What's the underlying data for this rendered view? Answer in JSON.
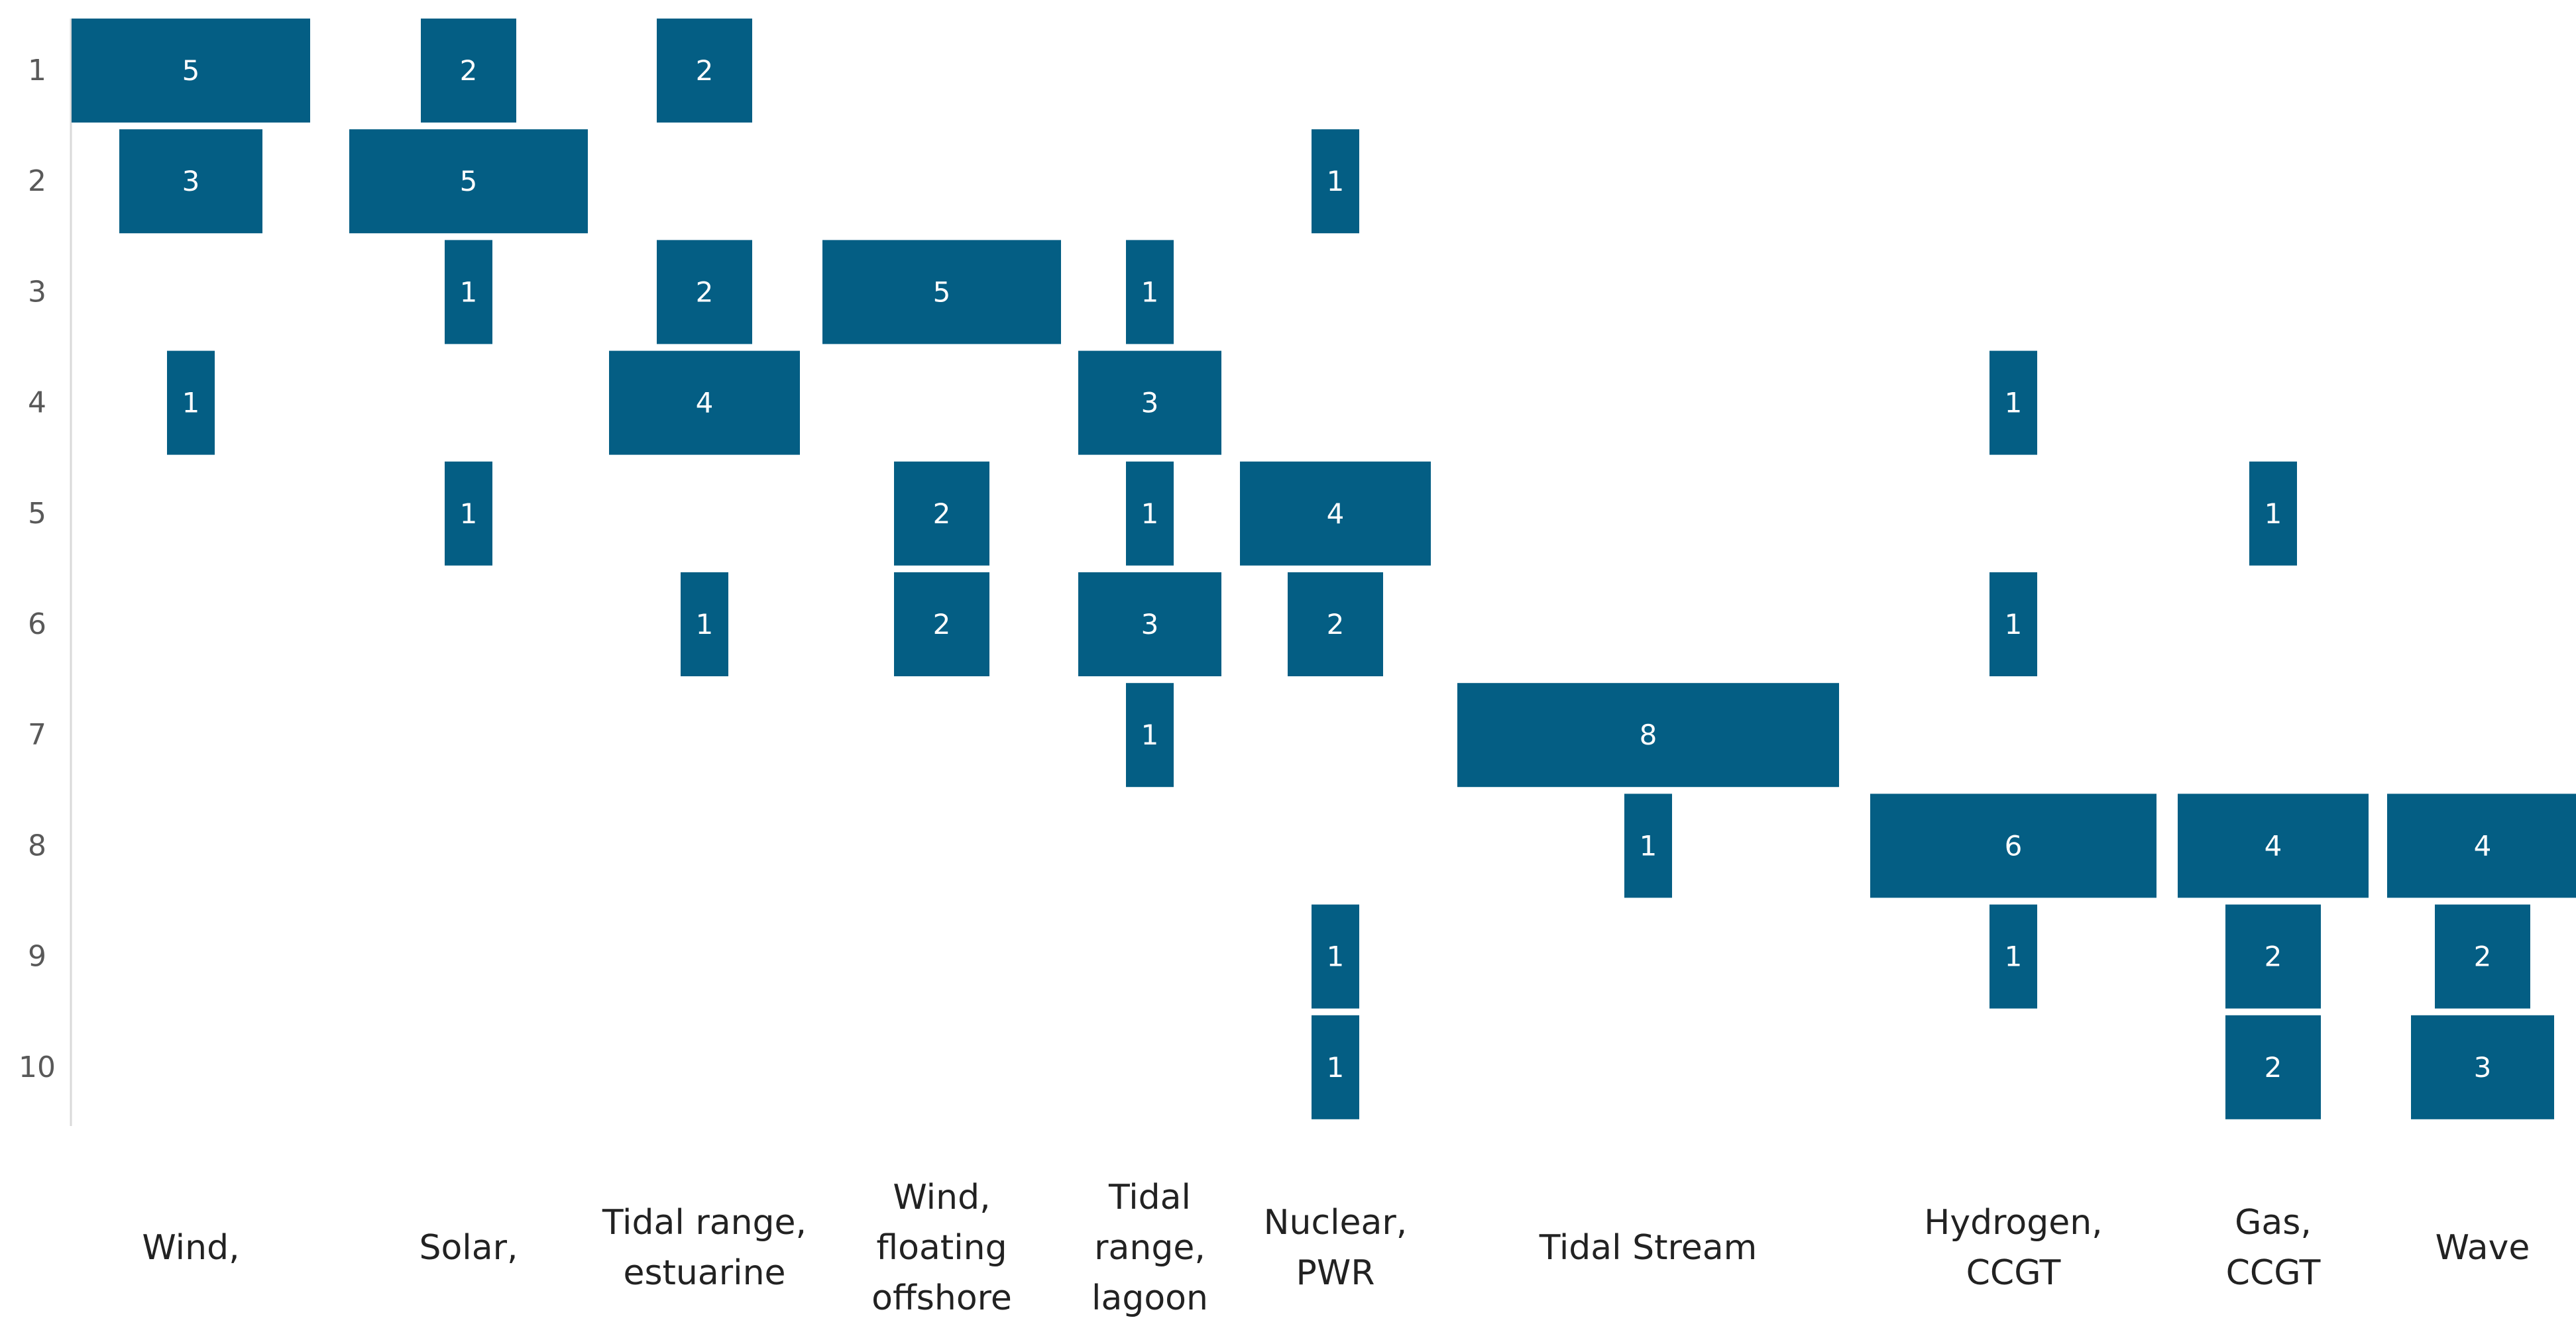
{
  "chart_data": {
    "type": "heatmap",
    "title": "",
    "xlabel": "",
    "ylabel": "",
    "rows": [
      "1",
      "2",
      "3",
      "4",
      "5",
      "6",
      "7",
      "8",
      "9",
      "10"
    ],
    "categories": [
      {
        "name": "Wind,",
        "lines": [
          "Wind,"
        ]
      },
      {
        "name": "Solar,",
        "lines": [
          "Solar,"
        ]
      },
      {
        "name": "Tidal range, estuarine",
        "lines": [
          "Tidal range,",
          "estuarine"
        ]
      },
      {
        "name": "Wind, floating offshore",
        "lines": [
          "Wind,",
          "floating",
          "offshore"
        ]
      },
      {
        "name": "Tidal range, lagoon",
        "lines": [
          "Tidal",
          "range,",
          "lagoon"
        ]
      },
      {
        "name": "Nuclear, PWR",
        "lines": [
          "Nuclear,",
          "PWR"
        ]
      },
      {
        "name": "Tidal Stream",
        "lines": [
          "Tidal Stream"
        ]
      },
      {
        "name": "Hydrogen, CCGT",
        "lines": [
          "Hydrogen,",
          "CCGT"
        ]
      },
      {
        "name": "Gas, CCGT",
        "lines": [
          "Gas,",
          "CCGT"
        ]
      },
      {
        "name": "Wave",
        "lines": [
          "Wave"
        ]
      }
    ],
    "matrix": [
      [
        5,
        3,
        null,
        1,
        null,
        null,
        null,
        null,
        null,
        null
      ],
      [
        2,
        5,
        1,
        null,
        1,
        null,
        null,
        null,
        null,
        null
      ],
      [
        2,
        null,
        2,
        4,
        null,
        1,
        null,
        null,
        null,
        null
      ],
      [
        null,
        null,
        5,
        null,
        2,
        2,
        null,
        null,
        null,
        null
      ],
      [
        null,
        null,
        1,
        3,
        1,
        3,
        1,
        null,
        null,
        null
      ],
      [
        null,
        1,
        null,
        null,
        4,
        2,
        null,
        null,
        1,
        1
      ],
      [
        null,
        null,
        null,
        null,
        null,
        null,
        8,
        1,
        null,
        null
      ],
      [
        null,
        null,
        null,
        1,
        null,
        1,
        null,
        6,
        1,
        null
      ],
      [
        null,
        null,
        null,
        null,
        1,
        null,
        null,
        4,
        2,
        2
      ],
      [
        null,
        null,
        null,
        null,
        null,
        null,
        null,
        4,
        2,
        3
      ]
    ],
    "color": "#045E84",
    "label_color": "#ffffff",
    "grid": false,
    "legend": "none"
  }
}
